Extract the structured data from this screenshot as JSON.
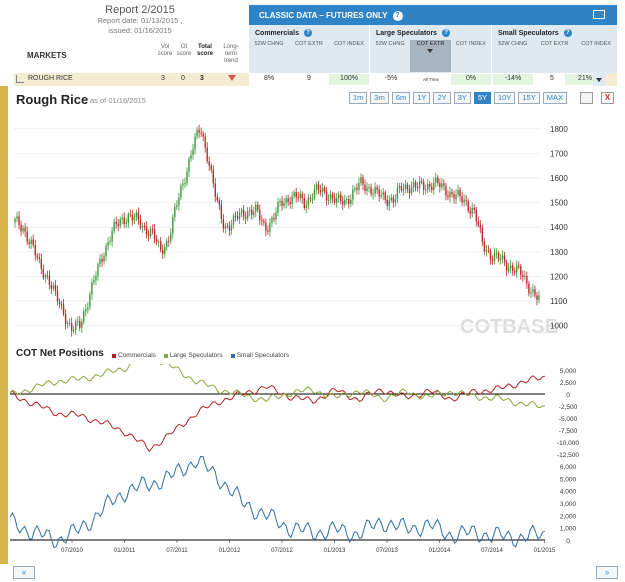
{
  "report": {
    "title": "Report 2/2015",
    "report_date": "Report date: 01/13/2015 ,",
    "issued": "issued: 01/16/2015"
  },
  "markets_label": "MARKETS",
  "columns": {
    "vol": "Vol score",
    "oi": "OI score",
    "total": "Total score",
    "trend": "Long-term trend"
  },
  "classic": {
    "title": "CLASSIC DATA – FUTURES ONLY",
    "groups": [
      {
        "name": "Commercials",
        "cols": [
          "52W CHNG",
          "COT EXTR",
          "COT INDEX"
        ]
      },
      {
        "name": "Large Speculators",
        "cols": [
          "52W CHNG",
          "COT EXTR",
          "COT INDEX"
        ]
      },
      {
        "name": "Small Speculators",
        "cols": [
          "52W CHNG",
          "COT EXTR",
          "COT INDEX"
        ]
      }
    ]
  },
  "market_row": {
    "name": "ROUGH RICE",
    "vol": "3",
    "oi": "0",
    "total": "3",
    "values": [
      "8%",
      "9",
      "100%",
      "-5%",
      "All Time",
      "0%",
      "-14%",
      "5",
      "21%"
    ]
  },
  "chart": {
    "title": "Rough Rice",
    "as_of": "as of 01/16/2015",
    "ranges": [
      "1m",
      "3m",
      "6m",
      "1Y",
      "2Y",
      "3Y",
      "5Y",
      "10Y",
      "15Y",
      "MAX"
    ],
    "active_range": "5Y",
    "close_label": "X",
    "watermark": "COTBASE",
    "watermark_suffix": ".com"
  },
  "cot": {
    "title": "COT Net Positions",
    "legend": [
      "Commercials",
      "Large Speculators",
      "Small Speculators"
    ],
    "colors": {
      "commercials": "#b22222",
      "large": "#8aa83a",
      "small": "#2f6ea8"
    }
  },
  "nav": {
    "prev": "«",
    "next": "»"
  },
  "chart_data": [
    {
      "type": "candlestick",
      "title": "Rough Rice",
      "ylim": [
        950,
        1860
      ],
      "yticks": [
        1000,
        1100,
        1200,
        1300,
        1400,
        1500,
        1600,
        1700,
        1800
      ],
      "x_ticks": [
        "07/2010",
        "01/2011",
        "07/2011",
        "01/2012",
        "07/2012",
        "01/2013",
        "07/2013",
        "01/2014",
        "07/2014",
        "01/2015"
      ],
      "close_series": [
        1420,
        1400,
        1330,
        1250,
        1200,
        1120,
        1060,
        980,
        1000,
        1100,
        1200,
        1300,
        1380,
        1420,
        1450,
        1430,
        1400,
        1380,
        1300,
        1350,
        1480,
        1600,
        1720,
        1800,
        1680,
        1500,
        1400,
        1420,
        1450,
        1470,
        1460,
        1400,
        1430,
        1500,
        1520,
        1520,
        1500,
        1540,
        1550,
        1530,
        1500,
        1510,
        1540,
        1580,
        1560,
        1530,
        1520,
        1510,
        1560,
        1570,
        1560,
        1570,
        1580,
        1560,
        1540,
        1520,
        1500,
        1460,
        1330,
        1290,
        1270,
        1250,
        1230,
        1200,
        1150,
        1100
      ]
    },
    {
      "type": "line",
      "title": "COT Net Positions",
      "series": [
        {
          "name": "Commercials",
          "ylim": [
            -12500,
            5000
          ]
        },
        {
          "name": "Large Speculators",
          "ylim": [
            -12500,
            5000
          ]
        }
      ],
      "yticks": [
        5000,
        2500,
        0,
        -2500,
        -5000,
        -7500,
        -10000,
        -12500
      ]
    },
    {
      "type": "line",
      "series": [
        {
          "name": "Small Speculators"
        }
      ],
      "ylim": [
        0,
        6000
      ],
      "yticks": [
        6000,
        5000,
        4000,
        3000,
        2000,
        1000,
        0
      ]
    }
  ]
}
